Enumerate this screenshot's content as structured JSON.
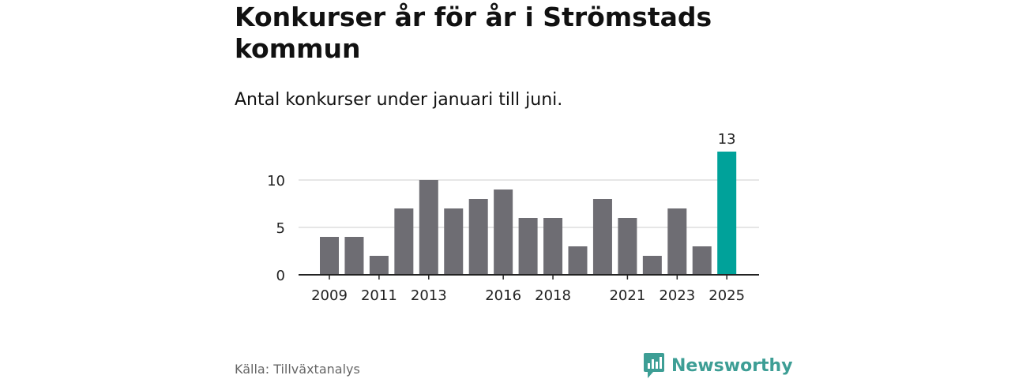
{
  "title": "Konkurser år för år i Strömstads kommun",
  "subtitle": "Antal konkurser under januari till juni.",
  "source": "Källa: Tillväxtanalys",
  "brand": {
    "name": "Newsworthy",
    "icon": "newsworthy-logo-icon",
    "color": "#3d9e95"
  },
  "chart_data": {
    "type": "bar",
    "categories": [
      "2009",
      "2010",
      "2011",
      "2012",
      "2013",
      "2014",
      "2015",
      "2016",
      "2017",
      "2018",
      "2019",
      "2020",
      "2021",
      "2022",
      "2023",
      "2024",
      "2025"
    ],
    "values": [
      4,
      4,
      2,
      7,
      10,
      7,
      8,
      9,
      6,
      6,
      3,
      8,
      6,
      2,
      7,
      3,
      13
    ],
    "x_tick_labels": [
      "2009",
      "2011",
      "2013",
      "2016",
      "2018",
      "2021",
      "2023",
      "2025"
    ],
    "y_ticks": [
      0,
      5,
      10
    ],
    "ylim": [
      0,
      13
    ],
    "highlight": {
      "category": "2025",
      "label": "13"
    },
    "xlabel": "",
    "ylabel": "",
    "grid": true,
    "colors": {
      "bar": "#6e6d73",
      "highlight": "#00a29a",
      "grid": "#dddddd",
      "axis": "#222222"
    }
  }
}
